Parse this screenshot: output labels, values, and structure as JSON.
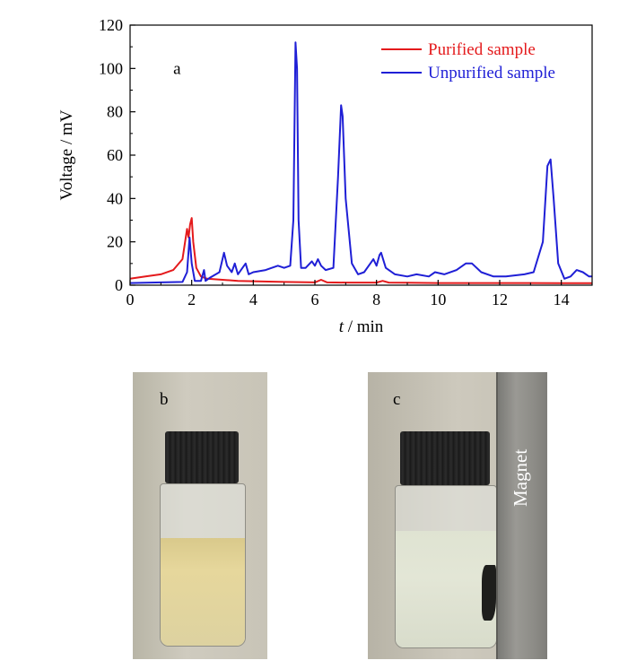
{
  "chart_data": {
    "type": "line",
    "panel_label": "a",
    "xlabel_italic": "t",
    "xlabel_unit": " / min",
    "ylabel": "Voltage / mV",
    "xlim": [
      0,
      15
    ],
    "ylim": [
      0,
      120
    ],
    "x_ticks": [
      "0",
      "2",
      "4",
      "6",
      "8",
      "10",
      "12",
      "14"
    ],
    "y_ticks": [
      "0",
      "20",
      "40",
      "60",
      "80",
      "100",
      "120"
    ],
    "legend_position": "top-right",
    "grid": false,
    "series": [
      {
        "name": "Purified sample",
        "color": "#e41a1c",
        "x": [
          0,
          0.5,
          1.0,
          1.4,
          1.7,
          1.85,
          1.9,
          1.95,
          2.0,
          2.05,
          2.15,
          2.3,
          2.5,
          3.0,
          3.5,
          4.0,
          5.0,
          6.0,
          6.2,
          6.4,
          7.0,
          8.0,
          8.2,
          8.4,
          9.0,
          10.0,
          11.0,
          12.0,
          13.0,
          14.0,
          15.0
        ],
        "y": [
          3,
          4,
          5,
          7,
          12,
          26,
          22,
          28,
          31,
          20,
          8,
          4,
          3,
          2.5,
          2,
          1.8,
          1.5,
          1.3,
          2.5,
          1.3,
          1.2,
          1.2,
          2,
          1.2,
          1.1,
          1.0,
          1.0,
          1.0,
          1.0,
          0.9,
          0.9
        ]
      },
      {
        "name": "Unpurified sample",
        "color": "#1f1fd6",
        "x": [
          0,
          1.0,
          1.7,
          1.85,
          1.93,
          2.0,
          2.1,
          2.3,
          2.4,
          2.45,
          2.6,
          2.9,
          3.05,
          3.15,
          3.3,
          3.4,
          3.5,
          3.65,
          3.75,
          3.85,
          4.0,
          4.4,
          4.6,
          4.8,
          5.0,
          5.2,
          5.3,
          5.37,
          5.42,
          5.47,
          5.55,
          5.7,
          5.9,
          6.0,
          6.1,
          6.2,
          6.35,
          6.6,
          6.75,
          6.85,
          6.9,
          7.0,
          7.2,
          7.4,
          7.6,
          7.8,
          7.9,
          8.0,
          8.1,
          8.15,
          8.3,
          8.6,
          9.0,
          9.3,
          9.7,
          9.9,
          10.2,
          10.6,
          10.9,
          11.1,
          11.4,
          11.8,
          12.2,
          12.8,
          13.1,
          13.4,
          13.55,
          13.65,
          13.75,
          13.9,
          14.1,
          14.3,
          14.5,
          14.7,
          14.9,
          15.0
        ],
        "y": [
          1,
          1.3,
          1.5,
          6,
          22,
          10,
          2,
          2,
          7,
          2,
          3.5,
          6,
          15,
          9,
          6,
          10,
          5,
          8,
          10,
          5,
          6,
          7,
          8,
          9,
          8,
          9,
          30,
          112,
          100,
          30,
          8,
          8,
          11,
          9,
          12,
          9,
          7,
          8,
          50,
          83,
          78,
          40,
          10,
          5,
          6,
          10,
          12,
          9,
          14,
          15,
          8,
          5,
          4,
          5,
          4,
          6,
          5,
          7,
          10,
          10,
          6,
          4,
          4,
          5,
          6,
          20,
          55,
          58,
          40,
          10,
          3,
          4,
          7,
          6,
          4,
          4
        ]
      }
    ]
  },
  "photos": {
    "b": {
      "label": "b"
    },
    "c": {
      "label": "c",
      "magnet_text": "Magnet"
    }
  }
}
